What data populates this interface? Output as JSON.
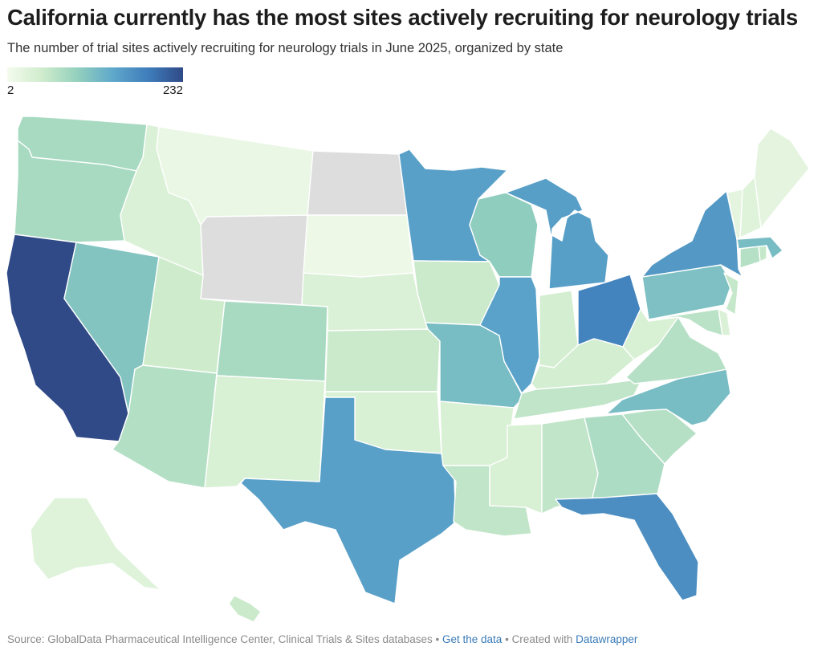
{
  "title": "California currently has the most sites actively recruiting for neurology trials",
  "subtitle": "The number of trial sites actively recruiting for neurology trials in June 2025, organized by state",
  "legend": {
    "min_label": "2",
    "max_label": "232",
    "min": 2,
    "max": 232
  },
  "footer": {
    "source": "Source: GlobalData Pharmaceutical Intelligence Center, Clinical Trials & Sites databases",
    "sep": " • ",
    "get_data": "Get the data",
    "created": "Created with",
    "tool": "Datawrapper"
  },
  "colors": {
    "no_data": "#dddddd",
    "ramp": [
      "#f4fbee",
      "#cfeccc",
      "#93d0bd",
      "#5fa8cb",
      "#3f7dbb",
      "#2f4a87"
    ]
  },
  "chart_data": {
    "type": "choropleth",
    "unit": "trial sites",
    "values": {
      "CA": 232,
      "OH": 150,
      "FL": 135,
      "NY": 120,
      "MI": 112,
      "MN": 110,
      "TX": 110,
      "IL": 108,
      "MO": 75,
      "NC": 75,
      "MA": 75,
      "PA": 70,
      "NV": 65,
      "WI": 55,
      "WA": 38,
      "OR": 38,
      "CO": 38,
      "AZ": 32,
      "GA": 35,
      "SC": 30,
      "VA": 30,
      "CT": 30,
      "MD": 28,
      "AL": 25,
      "TN": 25,
      "LA": 25,
      "NJ": 22,
      "HI": 20,
      "KS": 20,
      "IA": 20,
      "RI": 22,
      "UT": 18,
      "IN": 15,
      "KY": 15,
      "OK": 12,
      "AR": 12,
      "MS": 12,
      "NM": 12,
      "WV": 12,
      "DE": 10,
      "NE": 10,
      "ID": 10,
      "AK": 8,
      "NH": 8,
      "VT": 6,
      "ME": 6,
      "MT": 4,
      "SD": 3,
      "WY": null,
      "ND": null
    }
  }
}
